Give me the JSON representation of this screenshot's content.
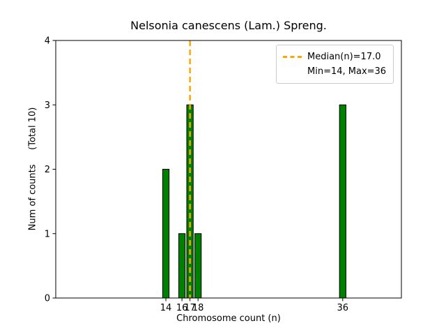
{
  "figure": {
    "title": "Nelsonia canescens (Lam.) Spreng.",
    "xlabel": "Chromosome count (n)",
    "ylabel": "Num of counts     (Total 10)",
    "legend_median": "Median(n)=17.0",
    "legend_minmax": "Min=14, Max=36"
  },
  "chart_data": {
    "type": "bar",
    "title": "Nelsonia canescens (Lam.) Spreng.",
    "xlabel": "Chromosome count (n)",
    "ylabel": "Num of counts (Total 10)",
    "categories": [
      14,
      16,
      17,
      18,
      36
    ],
    "values": [
      2,
      1,
      3,
      1,
      3
    ],
    "total_counts": 10,
    "median_n": 17.0,
    "min_n": 14,
    "max_n": 36,
    "bar_width": 0.8,
    "xlim": [
      0.3,
      43.3
    ],
    "ylim": [
      0,
      4
    ],
    "yticks": [
      0,
      1,
      2,
      3,
      4
    ],
    "xticks": [
      14,
      16,
      17,
      18,
      36
    ],
    "grid": false,
    "legend": {
      "position": "upper right",
      "entries": [
        "Median(n)=17.0",
        "Min=14, Max=36"
      ]
    },
    "colors": {
      "bar_fill": "#008000",
      "bar_edge": "#000000",
      "median_line": "#FFA500",
      "axis": "#000000",
      "legend_border": "#cccccc",
      "background": "#ffffff"
    }
  }
}
